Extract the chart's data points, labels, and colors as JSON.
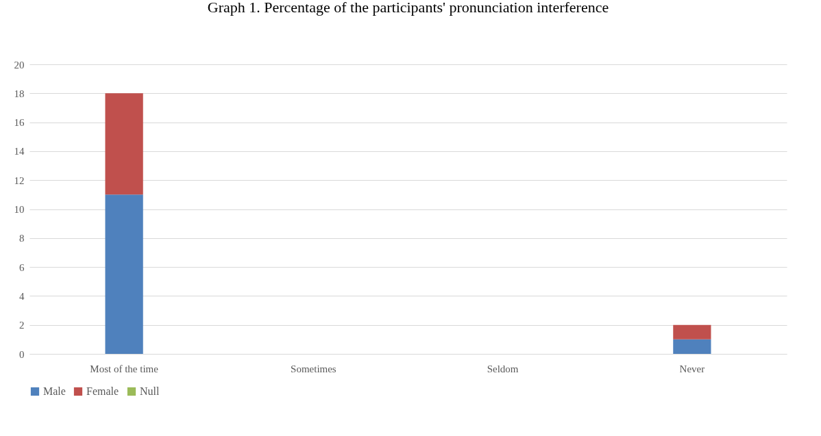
{
  "chart_data": {
    "type": "bar",
    "title": "Graph 1. Percentage of the participants' pronunciation interference",
    "categories": [
      "Most of the time",
      "Sometimes",
      "Seldom",
      "Never"
    ],
    "stacked": true,
    "series": [
      {
        "name": "Male",
        "color": "#4f81bd",
        "values": [
          11,
          0,
          0,
          1
        ]
      },
      {
        "name": "Female",
        "color": "#c0504d",
        "values": [
          7,
          0,
          0,
          1
        ]
      },
      {
        "name": "Null",
        "color": "#9bbb59",
        "values": [
          0,
          0,
          0,
          0
        ]
      }
    ],
    "ylim": [
      0,
      20
    ],
    "yticks": [
      0,
      2,
      4,
      6,
      8,
      10,
      12,
      14,
      16,
      18,
      20
    ],
    "grid": "y",
    "legend": "bottom"
  }
}
